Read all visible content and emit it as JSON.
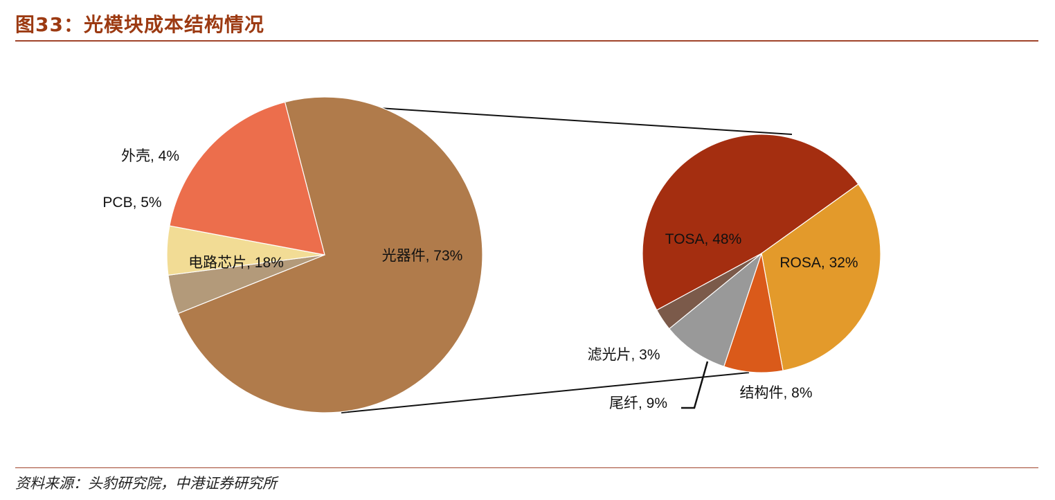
{
  "title": "图33：光模块成本结构情况",
  "source": "资料来源：头豹研究院，中港证券研究所",
  "colors": {
    "title": "#9C3A12",
    "rule": "#A0432A"
  },
  "chart_data": [
    {
      "type": "pie",
      "series": [
        {
          "label": "光器件, 73%",
          "value": 73,
          "color": "#B07B4B"
        },
        {
          "label": "外壳, 4%",
          "value": 4,
          "color": "#B39A7A"
        },
        {
          "label": "PCB, 5%",
          "value": 5,
          "color": "#F2DC95"
        },
        {
          "label": "电路芯片, 18%",
          "value": 18,
          "color": "#EC6E4C"
        }
      ]
    },
    {
      "type": "pie",
      "breakdown_of": "光器件, 73%",
      "series": [
        {
          "label": "TOSA, 48%",
          "value": 48,
          "color": "#A42E10"
        },
        {
          "label": "ROSA, 32%",
          "value": 32,
          "color": "#E39A2B"
        },
        {
          "label": "结构件, 8%",
          "value": 8,
          "color": "#DA5A1A"
        },
        {
          "label": "尾纤, 9%",
          "value": 9,
          "color": "#999999"
        },
        {
          "label": "滤光片, 3%",
          "value": 3,
          "color": "#7B5A4A"
        }
      ]
    }
  ]
}
